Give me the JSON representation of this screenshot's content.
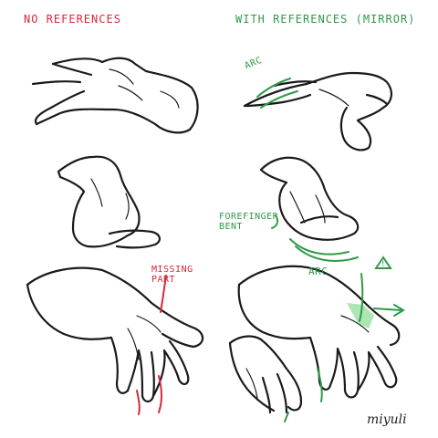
{
  "headers": {
    "left": "NO REFERENCES",
    "right": "WITH REFERENCES (MIRROR)"
  },
  "annotations": {
    "arc_top": "ARC",
    "forefinger_bent": "FOREFINGER\nBENT",
    "arc_middle": "ARC",
    "missing_part": "MISSING\nPART",
    "warning_mark": "!"
  },
  "signature": "miyuli",
  "colors": {
    "ink": "#1a1a1a",
    "red": "#d9283a",
    "green": "#2f9a48",
    "highlight": "#9fe0a8",
    "background": "#ffffff"
  }
}
